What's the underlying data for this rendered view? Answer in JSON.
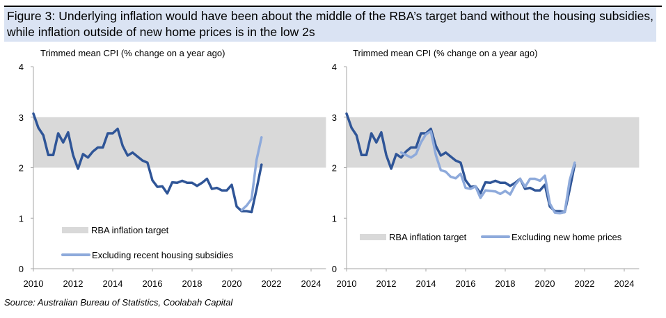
{
  "title": "Figure 3: Underlying inflation would have been about the middle of the RBA’s target band without the housing subsidies, while inflation outside of new home prices is in the low 2s",
  "source": "Source: Australian Bureau of Statistics, Coolabah Capital",
  "colors": {
    "trimmed_mean": "#2f5597",
    "alternative": "#8eaadb",
    "target_band": "#d9d9d9",
    "banner": "#dae3f3"
  },
  "chart_data": [
    {
      "type": "line",
      "title": "Trimmed mean CPI (% change on a year ago)",
      "xlim": [
        2010,
        2024.75
      ],
      "ylim": [
        0,
        4
      ],
      "x_ticks": [
        "2010",
        "2012",
        "2014",
        "2016",
        "2018",
        "2020",
        "2022",
        "2024"
      ],
      "y_ticks": [
        "0",
        "1",
        "2",
        "3",
        "4"
      ],
      "grid": false,
      "band": {
        "name": "RBA inflation target",
        "range": [
          2,
          3
        ]
      },
      "legend_position": "bottom-left",
      "series": [
        {
          "style": "dark",
          "x_start": 2010.0,
          "step": 0.25,
          "values": [
            3.07,
            2.79,
            2.64,
            2.25,
            2.25,
            2.68,
            2.5,
            2.7,
            2.25,
            1.98,
            2.27,
            2.2,
            2.32,
            2.4,
            2.4,
            2.68,
            2.68,
            2.77,
            2.43,
            2.24,
            2.3,
            2.22,
            2.14,
            2.1,
            1.75,
            1.62,
            1.63,
            1.49,
            1.71,
            1.7,
            1.74,
            1.7,
            1.7,
            1.64,
            1.7,
            1.78,
            1.58,
            1.6,
            1.55,
            1.55,
            1.66,
            1.23,
            1.14,
            1.14,
            1.12,
            1.57,
            2.06
          ]
        },
        {
          "name": "Excluding recent housing subsidies",
          "style": "light",
          "x_start": 2020.5,
          "step": 0.25,
          "values": [
            1.16,
            1.25,
            1.38,
            2.15,
            2.6
          ]
        }
      ]
    },
    {
      "type": "line",
      "title": "Trimmed mean CPI (% change on a year ago)",
      "xlim": [
        2010,
        2024.75
      ],
      "ylim": [
        0,
        4
      ],
      "x_ticks": [
        "2010",
        "2012",
        "2014",
        "2016",
        "2018",
        "2020",
        "2022",
        "2024"
      ],
      "y_ticks": [
        "0",
        "1",
        "2",
        "3",
        "4"
      ],
      "grid": false,
      "band": {
        "name": "RBA inflation target",
        "range": [
          2,
          3
        ]
      },
      "legend_position": "bottom",
      "series": [
        {
          "style": "dark",
          "x_start": 2010.0,
          "step": 0.25,
          "values": [
            3.07,
            2.79,
            2.64,
            2.25,
            2.25,
            2.68,
            2.5,
            2.7,
            2.25,
            1.98,
            2.27,
            2.2,
            2.32,
            2.4,
            2.4,
            2.68,
            2.68,
            2.77,
            2.43,
            2.24,
            2.3,
            2.22,
            2.14,
            2.1,
            1.75,
            1.62,
            1.63,
            1.49,
            1.71,
            1.7,
            1.74,
            1.7,
            1.7,
            1.64,
            1.7,
            1.78,
            1.58,
            1.6,
            1.55,
            1.55,
            1.66,
            1.23,
            1.14,
            1.14,
            1.12,
            1.57,
            2.06
          ]
        },
        {
          "name": "Excluding new home prices",
          "style": "light",
          "x_start": 2012.75,
          "step": 0.25,
          "values": [
            2.3,
            2.25,
            2.2,
            2.27,
            2.5,
            2.66,
            2.72,
            2.25,
            1.95,
            1.92,
            1.82,
            1.79,
            1.88,
            1.6,
            1.58,
            1.63,
            1.4,
            1.55,
            1.54,
            1.53,
            1.48,
            1.54,
            1.47,
            1.66,
            1.78,
            1.62,
            1.78,
            1.78,
            1.74,
            1.84,
            1.29,
            1.11,
            1.1,
            1.12,
            1.75,
            2.1
          ]
        }
      ]
    }
  ]
}
